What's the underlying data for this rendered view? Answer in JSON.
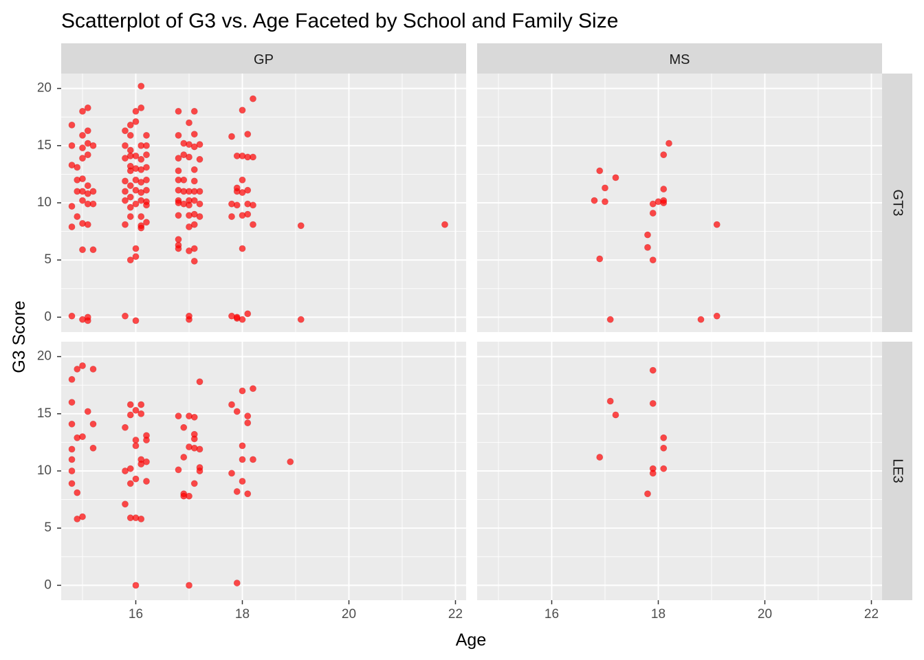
{
  "chart_data": {
    "type": "scatter",
    "title": "Scatterplot of G3 vs. Age Faceted by School and Family Size",
    "xlabel": "Age",
    "ylabel": "G3 Score",
    "xlim": [
      14.6,
      22.2
    ],
    "ylim": [
      -1.3,
      21.3
    ],
    "x_ticks": [
      16,
      18,
      20,
      22
    ],
    "y_ticks": [
      0,
      5,
      10,
      15,
      20
    ],
    "grid": true,
    "point_color": "#ff0000",
    "panel_background": "#ebebeb",
    "strip_background": "#d9d9d9",
    "facet_columns": [
      "GP",
      "MS"
    ],
    "facet_rows": [
      "GT3",
      "LE3"
    ],
    "panels": [
      {
        "school": "GP",
        "famsize": "GT3",
        "points": [
          [
            14.8,
            16.8
          ],
          [
            14.8,
            15.0
          ],
          [
            14.8,
            13.3
          ],
          [
            14.9,
            12.0
          ],
          [
            14.9,
            11.0
          ],
          [
            14.8,
            9.7
          ],
          [
            14.8,
            7.9
          ],
          [
            14.9,
            8.8
          ],
          [
            15.0,
            8.2
          ],
          [
            15.0,
            18.0
          ],
          [
            15.1,
            18.3
          ],
          [
            15.0,
            15.9
          ],
          [
            15.1,
            16.3
          ],
          [
            15.0,
            14.8
          ],
          [
            15.1,
            15.2
          ],
          [
            15.2,
            15.0
          ],
          [
            15.1,
            14.2
          ],
          [
            15.0,
            13.9
          ],
          [
            14.9,
            13.1
          ],
          [
            15.0,
            12.1
          ],
          [
            15.1,
            11.5
          ],
          [
            15.2,
            11.0
          ],
          [
            15.0,
            11.0
          ],
          [
            15.1,
            10.8
          ],
          [
            15.0,
            10.2
          ],
          [
            15.1,
            9.9
          ],
          [
            15.2,
            9.9
          ],
          [
            15.1,
            8.1
          ],
          [
            15.0,
            5.9
          ],
          [
            15.2,
            5.9
          ],
          [
            14.8,
            0.1
          ],
          [
            15.0,
            -0.2
          ],
          [
            15.1,
            -0.3
          ],
          [
            15.1,
            0.0
          ],
          [
            15.8,
            16.3
          ],
          [
            15.9,
            16.8
          ],
          [
            15.9,
            15.9
          ],
          [
            15.8,
            15.0
          ],
          [
            15.9,
            14.6
          ],
          [
            15.9,
            14.1
          ],
          [
            15.8,
            13.9
          ],
          [
            15.9,
            13.2
          ],
          [
            15.9,
            12.8
          ],
          [
            15.8,
            11.9
          ],
          [
            15.9,
            11.5
          ],
          [
            15.8,
            11.0
          ],
          [
            15.9,
            10.5
          ],
          [
            15.8,
            10.2
          ],
          [
            15.9,
            9.6
          ],
          [
            15.9,
            8.8
          ],
          [
            15.8,
            8.1
          ],
          [
            15.9,
            5.0
          ],
          [
            16.0,
            5.3
          ],
          [
            16.0,
            6.0
          ],
          [
            16.0,
            18.0
          ],
          [
            16.1,
            18.3
          ],
          [
            16.0,
            17.1
          ],
          [
            16.1,
            15.0
          ],
          [
            16.0,
            14.1
          ],
          [
            16.1,
            13.8
          ],
          [
            16.0,
            13.0
          ],
          [
            16.1,
            12.9
          ],
          [
            16.0,
            12.0
          ],
          [
            16.1,
            11.8
          ],
          [
            16.0,
            11.1
          ],
          [
            16.1,
            10.9
          ],
          [
            16.1,
            10.2
          ],
          [
            16.0,
            9.9
          ],
          [
            16.1,
            8.8
          ],
          [
            16.1,
            8.0
          ],
          [
            16.1,
            7.8
          ],
          [
            16.2,
            15.9
          ],
          [
            16.2,
            15.0
          ],
          [
            16.2,
            14.2
          ],
          [
            16.2,
            13.1
          ],
          [
            16.2,
            12.0
          ],
          [
            16.2,
            11.1
          ],
          [
            16.2,
            10.1
          ],
          [
            16.2,
            9.8
          ],
          [
            16.2,
            8.3
          ],
          [
            16.1,
            20.2
          ],
          [
            15.8,
            0.1
          ],
          [
            16.0,
            -0.3
          ],
          [
            16.8,
            18.0
          ],
          [
            16.8,
            15.9
          ],
          [
            16.8,
            13.9
          ],
          [
            16.8,
            12.8
          ],
          [
            16.8,
            12.0
          ],
          [
            16.8,
            11.1
          ],
          [
            16.8,
            10.2
          ],
          [
            16.8,
            10.0
          ],
          [
            16.8,
            8.9
          ],
          [
            16.8,
            6.8
          ],
          [
            16.8,
            6.3
          ],
          [
            16.8,
            6.0
          ],
          [
            16.9,
            15.2
          ],
          [
            16.9,
            14.2
          ],
          [
            16.9,
            12.0
          ],
          [
            16.9,
            11.0
          ],
          [
            16.9,
            9.9
          ],
          [
            17.0,
            17.0
          ],
          [
            17.0,
            15.1
          ],
          [
            17.0,
            14.0
          ],
          [
            17.0,
            11.0
          ],
          [
            17.0,
            10.2
          ],
          [
            17.0,
            9.8
          ],
          [
            17.0,
            8.9
          ],
          [
            17.0,
            7.9
          ],
          [
            17.1,
            18.0
          ],
          [
            17.1,
            16.0
          ],
          [
            17.1,
            14.9
          ],
          [
            17.1,
            12.9
          ],
          [
            17.1,
            11.9
          ],
          [
            17.1,
            11.0
          ],
          [
            17.1,
            10.2
          ],
          [
            17.1,
            9.0
          ],
          [
            17.1,
            8.1
          ],
          [
            17.1,
            6.0
          ],
          [
            17.1,
            4.9
          ],
          [
            17.2,
            15.1
          ],
          [
            17.2,
            13.8
          ],
          [
            17.2,
            11.0
          ],
          [
            17.2,
            9.9
          ],
          [
            17.2,
            8.8
          ],
          [
            17.0,
            5.8
          ],
          [
            17.0,
            -0.2
          ],
          [
            17.0,
            0.1
          ],
          [
            17.8,
            15.8
          ],
          [
            17.8,
            9.9
          ],
          [
            17.8,
            8.8
          ],
          [
            17.9,
            14.1
          ],
          [
            17.9,
            11.0
          ],
          [
            17.9,
            9.8
          ],
          [
            17.9,
            11.3
          ],
          [
            18.0,
            18.1
          ],
          [
            18.0,
            14.1
          ],
          [
            18.0,
            12.0
          ],
          [
            18.0,
            10.9
          ],
          [
            18.0,
            8.9
          ],
          [
            18.0,
            6.0
          ],
          [
            18.1,
            16.0
          ],
          [
            18.1,
            14.0
          ],
          [
            18.1,
            9.9
          ],
          [
            18.1,
            9.0
          ],
          [
            18.2,
            19.1
          ],
          [
            18.2,
            14.0
          ],
          [
            18.1,
            11.1
          ],
          [
            18.2,
            9.8
          ],
          [
            18.2,
            8.1
          ],
          [
            17.8,
            0.1
          ],
          [
            17.9,
            -0.1
          ],
          [
            17.9,
            0.0
          ],
          [
            18.0,
            -0.2
          ],
          [
            18.1,
            0.3
          ],
          [
            19.1,
            8.0
          ],
          [
            19.1,
            -0.2
          ],
          [
            21.8,
            8.1
          ]
        ]
      },
      {
        "school": "MS",
        "famsize": "GT3",
        "points": [
          [
            16.8,
            10.2
          ],
          [
            16.9,
            12.8
          ],
          [
            16.9,
            5.1
          ],
          [
            17.0,
            10.1
          ],
          [
            17.0,
            11.3
          ],
          [
            17.2,
            12.2
          ],
          [
            17.1,
            -0.2
          ],
          [
            17.8,
            7.2
          ],
          [
            17.8,
            6.1
          ],
          [
            17.9,
            9.9
          ],
          [
            17.9,
            9.1
          ],
          [
            17.9,
            5.0
          ],
          [
            18.0,
            10.1
          ],
          [
            18.1,
            10.0
          ],
          [
            18.1,
            10.2
          ],
          [
            18.1,
            11.2
          ],
          [
            18.1,
            14.2
          ],
          [
            18.2,
            15.2
          ],
          [
            18.8,
            -0.2
          ],
          [
            19.1,
            8.1
          ],
          [
            19.1,
            0.1
          ]
        ]
      },
      {
        "school": "GP",
        "famsize": "LE3",
        "points": [
          [
            14.8,
            18.0
          ],
          [
            14.8,
            16.0
          ],
          [
            14.8,
            14.1
          ],
          [
            14.9,
            12.9
          ],
          [
            14.8,
            11.9
          ],
          [
            14.8,
            11.0
          ],
          [
            14.8,
            10.0
          ],
          [
            14.8,
            8.9
          ],
          [
            14.9,
            8.1
          ],
          [
            14.9,
            5.8
          ],
          [
            14.9,
            18.9
          ],
          [
            15.0,
            19.2
          ],
          [
            15.0,
            13.0
          ],
          [
            15.0,
            6.0
          ],
          [
            15.1,
            15.2
          ],
          [
            15.2,
            14.1
          ],
          [
            15.2,
            12.0
          ],
          [
            15.2,
            18.9
          ],
          [
            15.8,
            13.8
          ],
          [
            15.8,
            10.0
          ],
          [
            15.8,
            7.1
          ],
          [
            15.9,
            15.8
          ],
          [
            15.9,
            14.9
          ],
          [
            15.9,
            10.2
          ],
          [
            15.9,
            8.9
          ],
          [
            15.9,
            5.9
          ],
          [
            16.0,
            5.9
          ],
          [
            16.0,
            15.3
          ],
          [
            16.0,
            12.7
          ],
          [
            16.0,
            12.2
          ],
          [
            16.0,
            9.3
          ],
          [
            16.1,
            15.0
          ],
          [
            16.1,
            15.8
          ],
          [
            16.1,
            11.0
          ],
          [
            16.1,
            10.6
          ],
          [
            16.1,
            5.8
          ],
          [
            16.2,
            13.1
          ],
          [
            16.2,
            12.7
          ],
          [
            16.2,
            10.8
          ],
          [
            16.2,
            9.1
          ],
          [
            16.0,
            0.0
          ],
          [
            16.8,
            14.8
          ],
          [
            16.8,
            10.1
          ],
          [
            16.9,
            13.8
          ],
          [
            16.9,
            8.0
          ],
          [
            16.9,
            11.2
          ],
          [
            16.9,
            7.8
          ],
          [
            17.0,
            14.8
          ],
          [
            17.0,
            12.1
          ],
          [
            17.0,
            7.8
          ],
          [
            17.1,
            14.7
          ],
          [
            17.1,
            13.2
          ],
          [
            17.1,
            12.8
          ],
          [
            17.1,
            12.0
          ],
          [
            17.1,
            8.9
          ],
          [
            17.2,
            17.8
          ],
          [
            17.2,
            11.9
          ],
          [
            17.2,
            10.3
          ],
          [
            17.2,
            10.0
          ],
          [
            17.0,
            0.0
          ],
          [
            17.8,
            15.8
          ],
          [
            17.8,
            9.8
          ],
          [
            17.9,
            8.2
          ],
          [
            17.9,
            15.2
          ],
          [
            18.0,
            17.0
          ],
          [
            18.0,
            12.2
          ],
          [
            18.0,
            11.0
          ],
          [
            18.0,
            9.1
          ],
          [
            18.1,
            14.8
          ],
          [
            18.1,
            14.2
          ],
          [
            18.1,
            8.0
          ],
          [
            18.2,
            17.2
          ],
          [
            18.2,
            11.0
          ],
          [
            17.9,
            0.2
          ],
          [
            18.9,
            10.8
          ]
        ]
      },
      {
        "school": "MS",
        "famsize": "LE3",
        "points": [
          [
            16.9,
            11.2
          ],
          [
            17.1,
            16.1
          ],
          [
            17.2,
            14.9
          ],
          [
            17.8,
            8.0
          ],
          [
            17.9,
            15.9
          ],
          [
            17.9,
            10.2
          ],
          [
            17.9,
            9.8
          ],
          [
            17.9,
            18.8
          ],
          [
            18.1,
            12.0
          ],
          [
            18.1,
            10.2
          ],
          [
            18.1,
            12.9
          ]
        ]
      }
    ]
  }
}
